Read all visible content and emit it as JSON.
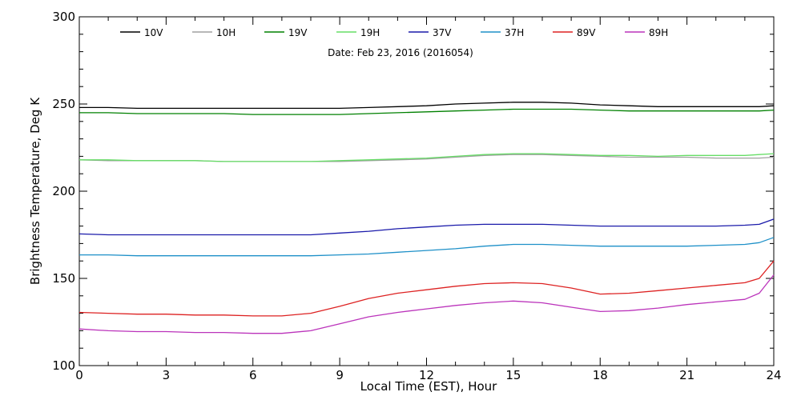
{
  "chart_data": {
    "type": "line",
    "title": "",
    "annotation": "Date: Feb 23, 2016 (2016054)",
    "xlabel": "Local Time (EST), Hour",
    "ylabel": "Brightness Temperature, Deg K",
    "xlim": [
      0,
      24
    ],
    "ylim": [
      100,
      300
    ],
    "x_ticks": [
      0,
      3,
      6,
      9,
      12,
      15,
      18,
      21,
      24
    ],
    "y_ticks": [
      100,
      150,
      200,
      250,
      300
    ],
    "grid": false,
    "legend_position": "top",
    "x": [
      0,
      1,
      2,
      3,
      4,
      5,
      6,
      7,
      8,
      9,
      10,
      11,
      12,
      13,
      14,
      15,
      16,
      17,
      18,
      19,
      20,
      21,
      22,
      23,
      23.5,
      24
    ],
    "series": [
      {
        "name": "10V",
        "color": "#000000",
        "values": [
          248,
          248,
          247.5,
          247.5,
          247.5,
          247.5,
          247.5,
          247.5,
          247.5,
          247.5,
          248,
          248.5,
          249,
          250,
          250.5,
          251,
          251,
          250.5,
          249.5,
          249,
          248.5,
          248.5,
          248.5,
          248.5,
          248.5,
          249
        ]
      },
      {
        "name": "10H",
        "color": "#a0a0a0",
        "values": [
          218,
          217.5,
          217.5,
          217.5,
          217.5,
          217,
          217,
          217,
          217,
          217,
          217.5,
          218,
          218.5,
          219.5,
          220.5,
          221,
          221,
          220.5,
          220,
          219.5,
          219.5,
          219.5,
          219,
          219,
          219,
          219.5
        ]
      },
      {
        "name": "19V",
        "color": "#008000",
        "values": [
          245,
          245,
          244.5,
          244.5,
          244.5,
          244.5,
          244,
          244,
          244,
          244,
          244.5,
          245,
          245.5,
          246,
          246.5,
          247,
          247,
          247,
          246.5,
          246,
          246,
          246,
          246,
          246,
          246,
          246.5
        ]
      },
      {
        "name": "19H",
        "color": "#66dd66",
        "values": [
          218,
          218,
          217.5,
          217.5,
          217.5,
          217,
          217,
          217,
          217,
          217.5,
          218,
          218.5,
          219,
          220,
          221,
          221.5,
          221.5,
          221,
          220.5,
          220.5,
          220,
          220.5,
          220.5,
          220.5,
          221,
          221.5
        ]
      },
      {
        "name": "37V",
        "color": "#1a1aaa",
        "values": [
          175.5,
          175,
          175,
          175,
          175,
          175,
          175,
          175,
          175,
          176,
          177,
          178.5,
          179.5,
          180.5,
          181,
          181,
          181,
          180.5,
          180,
          180,
          180,
          180,
          180,
          180.5,
          181,
          184
        ]
      },
      {
        "name": "37H",
        "color": "#1e90c8",
        "values": [
          163.5,
          163.5,
          163,
          163,
          163,
          163,
          163,
          163,
          163,
          163.5,
          164,
          165,
          166,
          167,
          168.5,
          169.5,
          169.5,
          169,
          168.5,
          168.5,
          168.5,
          168.5,
          169,
          169.5,
          170.5,
          173.5
        ]
      },
      {
        "name": "89V",
        "color": "#dd2222",
        "values": [
          130.5,
          130,
          129.5,
          129.5,
          129,
          129,
          128.5,
          128.5,
          130,
          134,
          138.5,
          141.5,
          143.5,
          145.5,
          147,
          147.5,
          147,
          144.5,
          141,
          141.5,
          143,
          144.5,
          146,
          147.5,
          150,
          160
        ]
      },
      {
        "name": "89H",
        "color": "#bb33bb",
        "values": [
          121,
          120,
          119.5,
          119.5,
          119,
          119,
          118.5,
          118.5,
          120,
          124,
          128,
          130.5,
          132.5,
          134.5,
          136,
          137,
          136,
          133.5,
          131,
          131.5,
          133,
          135,
          136.5,
          138,
          141.5,
          152
        ]
      }
    ]
  }
}
